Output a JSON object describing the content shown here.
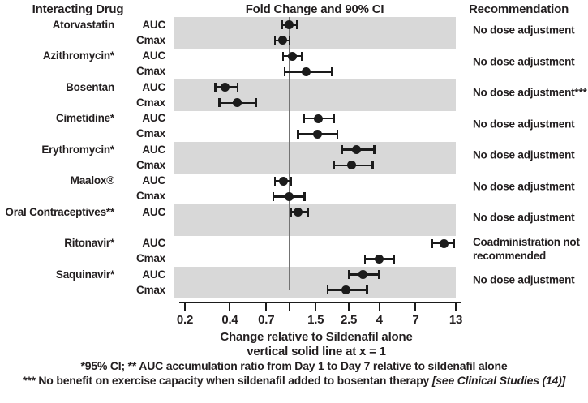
{
  "figure": {
    "header_left": "Interacting Drug",
    "header_center": "Fold Change and 90% CI",
    "header_right": "Recommendation"
  },
  "chart_data": {
    "type": "scatter",
    "subtype": "forest-plot",
    "title": "Fold Change and 90% CI",
    "xlabel": "Change relative to Sildenafil alone",
    "x_scale": "log",
    "xlim": [
      0.2,
      13
    ],
    "ref_line_x": 1,
    "ref_line_note": "vertical solid line at x = 1",
    "x_ticks": [
      {
        "value": 0.2,
        "label": "0.2"
      },
      {
        "value": 0.4,
        "label": "0.4"
      },
      {
        "value": 0.7,
        "label": "0.7"
      },
      {
        "value": 1,
        "label": ""
      },
      {
        "value": 1.5,
        "label": "1.5"
      },
      {
        "value": 2.5,
        "label": "2.5"
      },
      {
        "value": 4,
        "label": "4"
      },
      {
        "value": 7,
        "label": "7"
      },
      {
        "value": 13,
        "label": "13"
      }
    ],
    "groups": [
      {
        "drug": "Atorvastatin",
        "shaded": true,
        "recommendation": "No dose adjustment",
        "entries": [
          {
            "param": "AUC",
            "value": 1.0,
            "ci": [
              0.89,
              1.13
            ]
          },
          {
            "param": "Cmax",
            "value": 0.9,
            "ci": [
              0.8,
              1.0
            ]
          }
        ]
      },
      {
        "drug": "Azithromycin*",
        "shaded": false,
        "recommendation": "No dose adjustment",
        "entries": [
          {
            "param": "AUC",
            "value": 1.05,
            "ci": [
              0.91,
              1.22
            ]
          },
          {
            "param": "Cmax",
            "value": 1.3,
            "ci": [
              0.93,
              1.93
            ]
          }
        ]
      },
      {
        "drug": "Bosentan",
        "shaded": true,
        "recommendation": "No dose adjustment***",
        "entries": [
          {
            "param": "AUC",
            "value": 0.37,
            "ci": [
              0.32,
              0.45
            ]
          },
          {
            "param": "Cmax",
            "value": 0.45,
            "ci": [
              0.34,
              0.6
            ]
          }
        ]
      },
      {
        "drug": "Cimetidine*",
        "shaded": false,
        "recommendation": "No dose adjustment",
        "entries": [
          {
            "param": "AUC",
            "value": 1.56,
            "ci": [
              1.25,
              2.0
            ]
          },
          {
            "param": "Cmax",
            "value": 1.54,
            "ci": [
              1.14,
              2.1
            ]
          }
        ]
      },
      {
        "drug": "Erythromycin*",
        "shaded": true,
        "recommendation": "No dose adjustment",
        "entries": [
          {
            "param": "AUC",
            "value": 2.8,
            "ci": [
              2.25,
              3.7
            ]
          },
          {
            "param": "Cmax",
            "value": 2.6,
            "ci": [
              2.0,
              3.6
            ]
          }
        ]
      },
      {
        "drug": "Maalox®",
        "shaded": false,
        "recommendation": "No dose adjustment",
        "entries": [
          {
            "param": "AUC",
            "value": 0.91,
            "ci": [
              0.8,
              1.03
            ]
          },
          {
            "param": "Cmax",
            "value": 1.0,
            "ci": [
              0.78,
              1.26
            ]
          }
        ]
      },
      {
        "drug": "Oral Contraceptives**",
        "shaded": true,
        "recommendation": "No dose adjustment",
        "extra_rows": 1,
        "entries": [
          {
            "param": "AUC",
            "value": 1.15,
            "ci": [
              1.03,
              1.34
            ]
          }
        ]
      },
      {
        "drug": "Ritonavir*",
        "shaded": false,
        "recommendation": "Coadministration not recommended",
        "entries": [
          {
            "param": "AUC",
            "value": 10.8,
            "ci": [
              9.0,
              12.7
            ]
          },
          {
            "param": "Cmax",
            "value": 4.0,
            "ci": [
              3.2,
              5.0
            ]
          }
        ]
      },
      {
        "drug": "Saquinavir*",
        "shaded": true,
        "recommendation": "No dose adjustment",
        "entries": [
          {
            "param": "AUC",
            "value": 3.1,
            "ci": [
              2.5,
              4.0
            ]
          },
          {
            "param": "Cmax",
            "value": 2.4,
            "ci": [
              1.8,
              3.3
            ]
          }
        ]
      }
    ],
    "footnotes": {
      "ref_note": "vertical solid line at x = 1",
      "line1": "*95% CI; ** AUC accumulation ratio from Day 1 to Day 7 relative to sildenafil alone",
      "line2_main": "*** No benefit on exercise capacity when sildenafil added to bosentan therapy ",
      "line2_italic": "[see Clinical Studies (14)]"
    },
    "colors": {
      "band": "#d8d8d8",
      "marker": "#1b1b1b",
      "ref_line": "#737373",
      "text": "#231f20"
    },
    "legend_position": "none",
    "grid": false
  }
}
